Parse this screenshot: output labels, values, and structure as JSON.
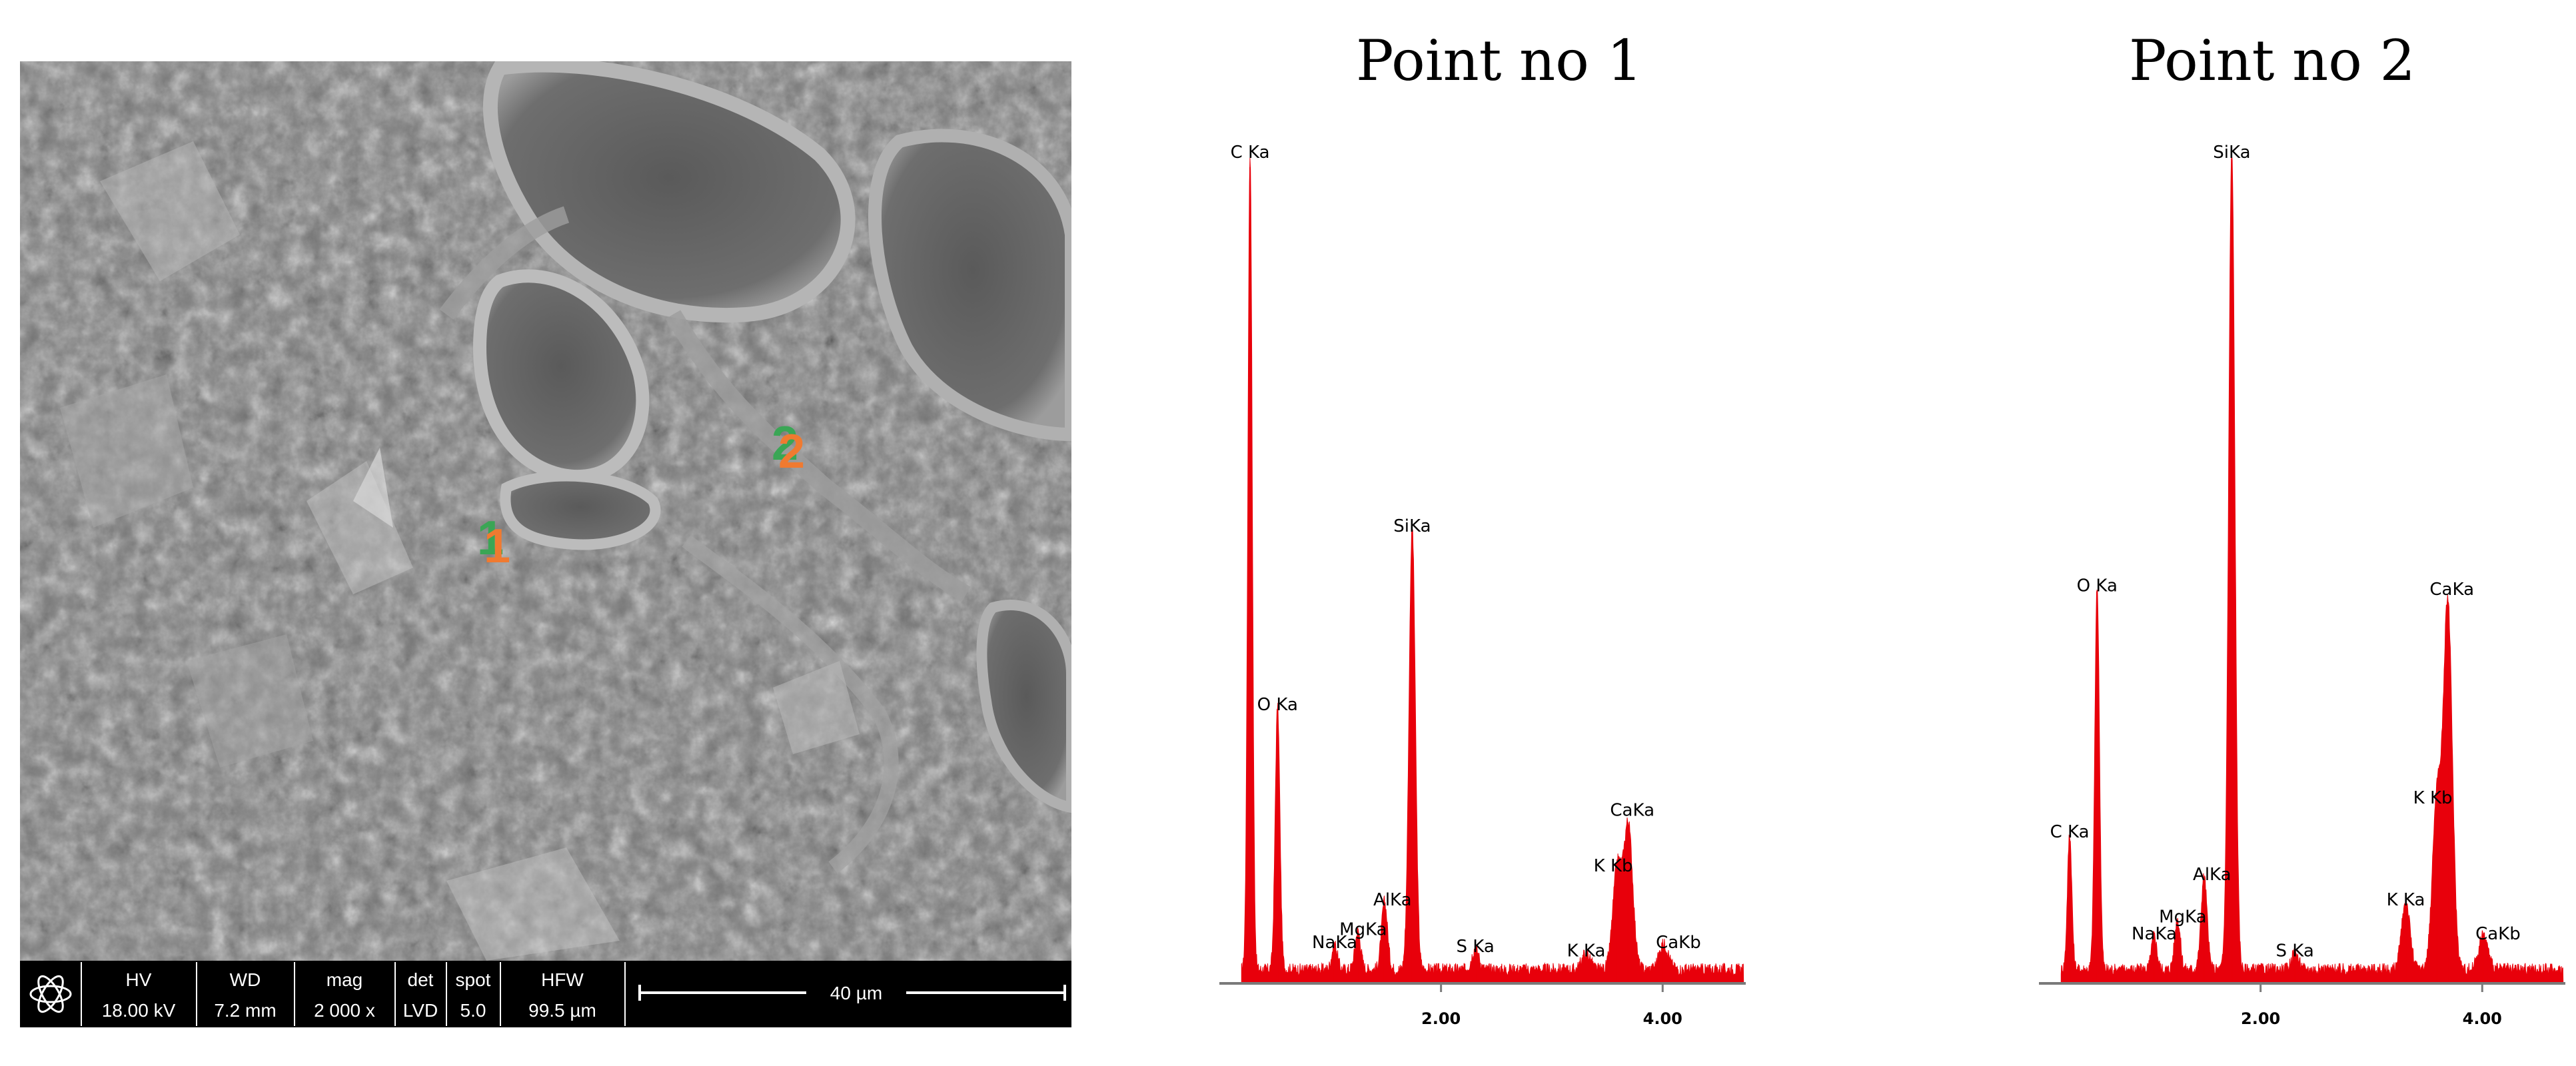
{
  "sem": {
    "markers": [
      {
        "label": "1",
        "color": "#f07a30",
        "shadow": "#3aa655"
      },
      {
        "label": "2",
        "color": "#f07a30",
        "shadow": "#3aa655"
      }
    ],
    "info_bar": {
      "headers": [
        "HV",
        "WD",
        "mag",
        "det",
        "spot",
        "HFW"
      ],
      "values": [
        "18.00 kV",
        "7.2 mm",
        "2 000 x",
        "LVD",
        "5.0",
        "99.5 µm"
      ],
      "scale_label": "40 µm"
    }
  },
  "chart_data": [
    {
      "type": "line",
      "title": "Point no 1",
      "xlabel": "",
      "ylabel": "",
      "x_ticks": [
        2.0,
        4.0
      ],
      "x_tick_labels": [
        "2.00",
        "4.00"
      ],
      "xlim": [
        0,
        4.75
      ],
      "ylim": [
        0,
        1.0
      ],
      "color": "#e8000b",
      "peaks": [
        {
          "label": "C Ka",
          "x": 0.277,
          "y": 0.96
        },
        {
          "label": "O Ka",
          "x": 0.525,
          "y": 0.31
        },
        {
          "label": "NaKa",
          "x": 1.04,
          "y": 0.03
        },
        {
          "label": "MgKa",
          "x": 1.25,
          "y": 0.045
        },
        {
          "label": "AlKa",
          "x": 1.49,
          "y": 0.08
        },
        {
          "label": "SiKa",
          "x": 1.74,
          "y": 0.52
        },
        {
          "label": "S Ka",
          "x": 2.31,
          "y": 0.025
        },
        {
          "label": "K Ka",
          "x": 3.31,
          "y": 0.02
        },
        {
          "label": "K Kb",
          "x": 3.59,
          "y": 0.12
        },
        {
          "label": "CaKa",
          "x": 3.69,
          "y": 0.17
        },
        {
          "label": "CaKb",
          "x": 4.01,
          "y": 0.03
        }
      ]
    },
    {
      "type": "line",
      "title": "Point no 2",
      "xlabel": "",
      "ylabel": "",
      "x_ticks": [
        2.0,
        4.0
      ],
      "x_tick_labels": [
        "2.00",
        "4.00"
      ],
      "xlim": [
        0,
        4.75
      ],
      "ylim": [
        0,
        1.0
      ],
      "color": "#e8000b",
      "peaks": [
        {
          "label": "C Ka",
          "x": 0.277,
          "y": 0.16
        },
        {
          "label": "O Ka",
          "x": 0.525,
          "y": 0.45
        },
        {
          "label": "NaKa",
          "x": 1.04,
          "y": 0.04
        },
        {
          "label": "MgKa",
          "x": 1.25,
          "y": 0.06
        },
        {
          "label": "AlKa",
          "x": 1.49,
          "y": 0.11
        },
        {
          "label": "SiKa",
          "x": 1.74,
          "y": 0.96
        },
        {
          "label": "S Ka",
          "x": 2.31,
          "y": 0.02
        },
        {
          "label": "K Ka",
          "x": 3.31,
          "y": 0.08
        },
        {
          "label": "K Kb",
          "x": 3.59,
          "y": 0.2
        },
        {
          "label": "CaKa",
          "x": 3.69,
          "y": 0.43
        },
        {
          "label": "CaKb",
          "x": 4.01,
          "y": 0.04
        }
      ]
    }
  ]
}
